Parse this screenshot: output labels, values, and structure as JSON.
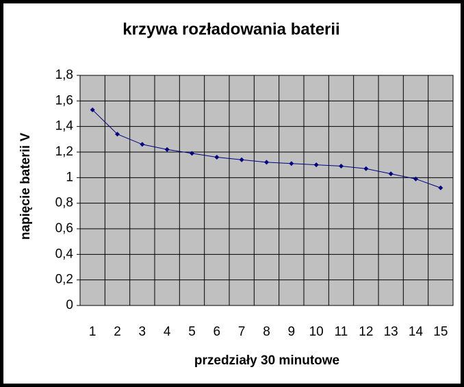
{
  "chart_data": {
    "type": "line",
    "title": "krzywa rozładowania baterii",
    "x_label": "przedziały 30 minutowe",
    "y_label": "napięcie baterii V",
    "categories": [
      "1",
      "2",
      "3",
      "4",
      "5",
      "6",
      "7",
      "8",
      "9",
      "10",
      "11",
      "12",
      "13",
      "14",
      "15"
    ],
    "series": [
      {
        "color": "#000080",
        "values": [
          1.53,
          1.34,
          1.26,
          1.22,
          1.19,
          1.16,
          1.14,
          1.12,
          1.11,
          1.1,
          1.09,
          1.07,
          1.03,
          0.99,
          0.92
        ]
      }
    ],
    "ylim": [
      0,
      1.8
    ],
    "yticks": [
      0,
      {
        "value": 0.2,
        "label": "0,2"
      },
      {
        "value": 0.4,
        "label": "0,4"
      },
      {
        "value": 0.6,
        "label": "0,6"
      },
      {
        "value": 0.8,
        "label": "0,8"
      },
      1,
      {
        "value": 1.2,
        "label": "1,2"
      },
      {
        "value": 1.4,
        "label": "1,4"
      },
      {
        "value": 1.6,
        "label": "1,6"
      },
      {
        "value": 1.8,
        "label": "1,8"
      }
    ],
    "grid": true,
    "plot_background": "#c0c0c0"
  }
}
